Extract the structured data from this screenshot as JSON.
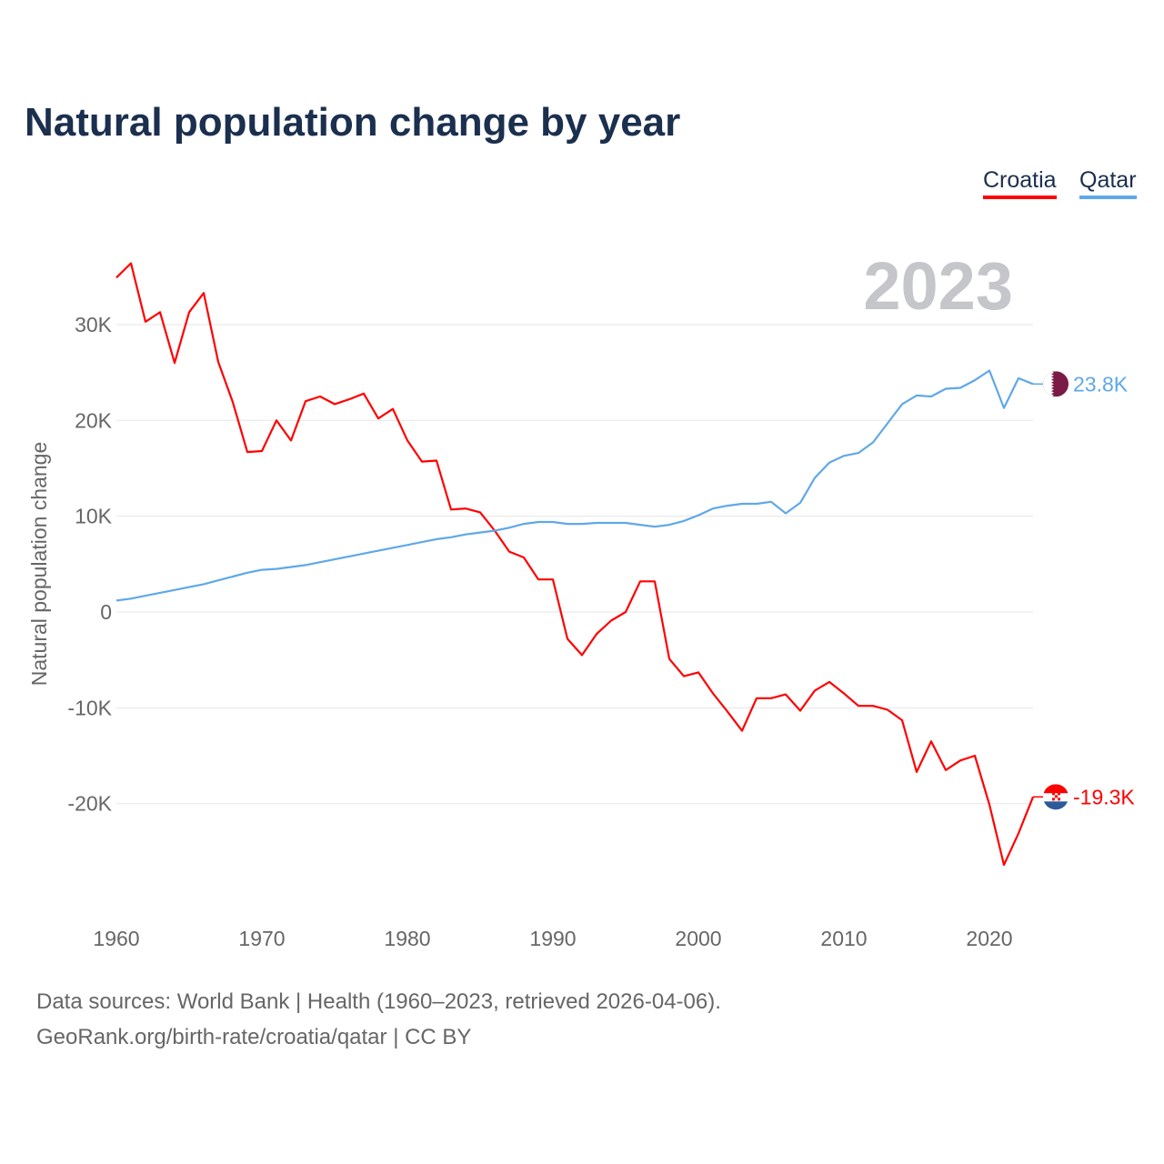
{
  "chart_data": {
    "type": "line",
    "title": "Natural population change by year",
    "xlabel": "",
    "ylabel": "Natural population change",
    "year_watermark": "2023",
    "xlim": [
      1960,
      2023
    ],
    "ylim": [
      -30000,
      37000
    ],
    "x_ticks": [
      1960,
      1970,
      1980,
      1990,
      2000,
      2010,
      2020
    ],
    "x_tick_labels": [
      "1960",
      "1970",
      "1980",
      "1990",
      "2000",
      "2010",
      "2020"
    ],
    "y_ticks": [
      30000,
      20000,
      10000,
      0,
      -10000,
      -20000
    ],
    "y_tick_labels": [
      "30K",
      "20K",
      "10K",
      "0",
      "-10K",
      "-20K"
    ],
    "grid": true,
    "legend_position": "top-right",
    "x": [
      1960,
      1961,
      1962,
      1963,
      1964,
      1965,
      1966,
      1967,
      1968,
      1969,
      1970,
      1971,
      1972,
      1973,
      1974,
      1975,
      1976,
      1977,
      1978,
      1979,
      1980,
      1981,
      1982,
      1983,
      1984,
      1985,
      1986,
      1987,
      1988,
      1989,
      1990,
      1991,
      1992,
      1993,
      1994,
      1995,
      1996,
      1997,
      1998,
      1999,
      2000,
      2001,
      2002,
      2003,
      2004,
      2005,
      2006,
      2007,
      2008,
      2009,
      2010,
      2011,
      2012,
      2013,
      2014,
      2015,
      2016,
      2017,
      2018,
      2019,
      2020,
      2021,
      2022,
      2023
    ],
    "series": [
      {
        "name": "Croatia",
        "color": "#ff0000",
        "end_label": "-19.3K",
        "values": [
          34900,
          36400,
          30300,
          31300,
          26000,
          31300,
          33300,
          26100,
          21900,
          16700,
          16800,
          20000,
          17900,
          22000,
          22500,
          21700,
          22200,
          22800,
          20200,
          21200,
          17900,
          15700,
          15800,
          10700,
          10800,
          10400,
          8500,
          6300,
          5700,
          3400,
          3400,
          -2800,
          -4500,
          -2300,
          -900,
          0,
          3200,
          3200,
          -4900,
          -6700,
          -6300,
          -8500,
          -10400,
          -12400,
          -9000,
          -9000,
          -8600,
          -10300,
          -8200,
          -7300,
          -8500,
          -9800,
          -9800,
          -10200,
          -11300,
          -16700,
          -13500,
          -16500,
          -15500,
          -15000,
          -20100,
          -26400,
          -23100,
          -19300
        ]
      },
      {
        "name": "Qatar",
        "color": "#5fa8e8",
        "end_label": "23.8K",
        "values": [
          1200,
          1400,
          1700,
          2000,
          2300,
          2600,
          2900,
          3300,
          3700,
          4100,
          4400,
          4500,
          4700,
          4900,
          5200,
          5500,
          5800,
          6100,
          6400,
          6700,
          7000,
          7300,
          7600,
          7800,
          8100,
          8300,
          8500,
          8800,
          9200,
          9400,
          9400,
          9200,
          9200,
          9300,
          9300,
          9300,
          9100,
          8900,
          9100,
          9500,
          10100,
          10800,
          11100,
          11300,
          11300,
          11500,
          10300,
          11400,
          14000,
          15600,
          16300,
          16600,
          17700,
          19700,
          21700,
          22600,
          22500,
          23300,
          23400,
          24200,
          25200,
          21300,
          24400,
          23800
        ]
      }
    ]
  },
  "footer": {
    "line1": "Data sources: World Bank | Health (1960–2023, retrieved 2026-04-06).",
    "line2": "GeoRank.org/birth-rate/croatia/qatar | CC BY"
  }
}
